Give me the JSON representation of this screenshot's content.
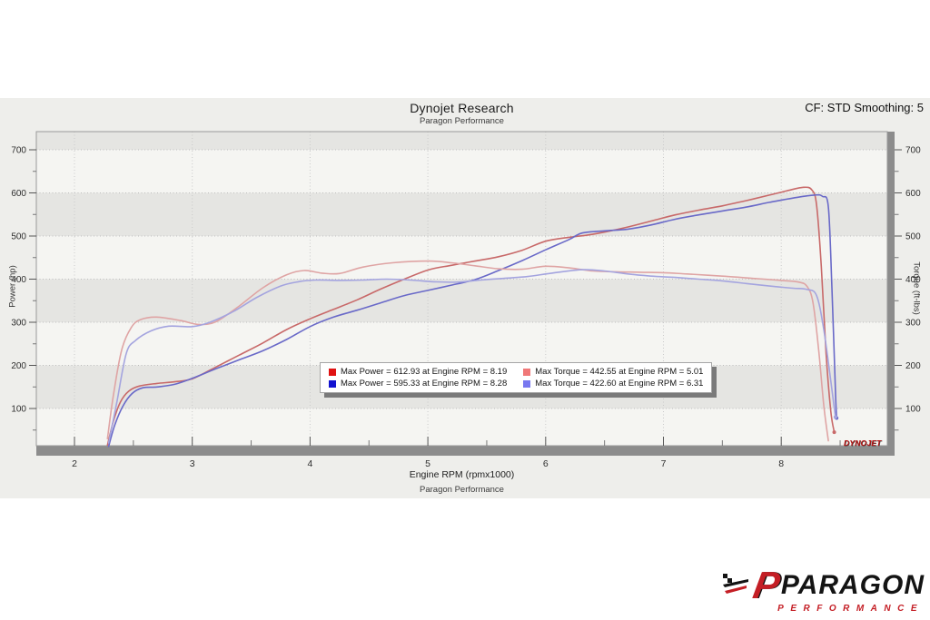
{
  "header": {
    "title": "Dynojet Research",
    "subtitle": "Paragon Performance",
    "cf_label": "CF: STD Smoothing: 5"
  },
  "footer": {
    "xlabel": "Engine RPM (rpmx1000)",
    "sublabel": "Paragon Performance"
  },
  "branding": {
    "dynojet_wordmark": "DYNOJET",
    "paragon_p": "P",
    "paragon_wordmark": "PARAGON",
    "paragon_subtext": "PERFORMANCE",
    "paragon_red": "#c41e25",
    "paragon_black": "#141414"
  },
  "chart_data": {
    "type": "line",
    "title": "Dynojet Research",
    "subtitle": "Paragon Performance",
    "xlabel": "Engine RPM (rpmx1000)",
    "ylabel_left": "Power (hp)",
    "ylabel_right": "Torque (ft-lbs)",
    "x_ticks": [
      2,
      3,
      4,
      5,
      6,
      7,
      8
    ],
    "y_ticks": [
      100,
      200,
      300,
      400,
      500,
      600,
      700
    ],
    "xlim": [
      1.68,
      8.9
    ],
    "ylim": [
      0,
      742
    ],
    "grid": "dotted",
    "legend_position": "center",
    "band_colors": [
      "#f5f5f2",
      "#e5e5e2"
    ],
    "series": [
      {
        "name": "Max Power = 612.93 at Engine RPM = 8.19",
        "kind": "power",
        "unit": "hp",
        "max": 612.93,
        "max_rpm": 8.19,
        "color": "#c86969",
        "legend_swatch": "#e01212",
        "end_dot": true,
        "points": [
          [
            2.28,
            15
          ],
          [
            2.33,
            70
          ],
          [
            2.39,
            115
          ],
          [
            2.46,
            140
          ],
          [
            2.55,
            152
          ],
          [
            2.7,
            158
          ],
          [
            2.85,
            162
          ],
          [
            3.0,
            169
          ],
          [
            3.2,
            196
          ],
          [
            3.4,
            224
          ],
          [
            3.6,
            252
          ],
          [
            3.8,
            283
          ],
          [
            4.0,
            308
          ],
          [
            4.2,
            330
          ],
          [
            4.4,
            352
          ],
          [
            4.6,
            377
          ],
          [
            4.8,
            400
          ],
          [
            5.01,
            422
          ],
          [
            5.2,
            432
          ],
          [
            5.4,
            442
          ],
          [
            5.6,
            452
          ],
          [
            5.8,
            467
          ],
          [
            6.0,
            488
          ],
          [
            6.2,
            497
          ],
          [
            6.35,
            502
          ],
          [
            6.5,
            509
          ],
          [
            6.7,
            521
          ],
          [
            6.9,
            535
          ],
          [
            7.1,
            549
          ],
          [
            7.3,
            560
          ],
          [
            7.5,
            570
          ],
          [
            7.7,
            582
          ],
          [
            7.9,
            595
          ],
          [
            8.05,
            605
          ],
          [
            8.19,
            613
          ],
          [
            8.26,
            607
          ],
          [
            8.3,
            572
          ],
          [
            8.34,
            430
          ],
          [
            8.38,
            230
          ],
          [
            8.42,
            95
          ],
          [
            8.45,
            45
          ]
        ]
      },
      {
        "name": "Max Power = 595.33 at Engine RPM = 8.28",
        "kind": "power",
        "unit": "hp",
        "max": 595.33,
        "max_rpm": 8.28,
        "color": "#6969c8",
        "legend_swatch": "#1212d0",
        "end_dot": true,
        "points": [
          [
            2.29,
            12
          ],
          [
            2.34,
            60
          ],
          [
            2.41,
            105
          ],
          [
            2.49,
            135
          ],
          [
            2.58,
            148
          ],
          [
            2.7,
            150
          ],
          [
            2.85,
            156
          ],
          [
            3.0,
            170
          ],
          [
            3.2,
            192
          ],
          [
            3.4,
            213
          ],
          [
            3.6,
            234
          ],
          [
            3.8,
            260
          ],
          [
            4.0,
            290
          ],
          [
            4.2,
            312
          ],
          [
            4.4,
            328
          ],
          [
            4.6,
            345
          ],
          [
            4.8,
            362
          ],
          [
            5.0,
            374
          ],
          [
            5.2,
            386
          ],
          [
            5.4,
            399
          ],
          [
            5.6,
            420
          ],
          [
            5.8,
            443
          ],
          [
            6.0,
            468
          ],
          [
            6.2,
            492
          ],
          [
            6.31,
            507
          ],
          [
            6.5,
            512
          ],
          [
            6.7,
            516
          ],
          [
            6.9,
            526
          ],
          [
            7.1,
            539
          ],
          [
            7.3,
            549
          ],
          [
            7.5,
            558
          ],
          [
            7.7,
            567
          ],
          [
            7.9,
            578
          ],
          [
            8.1,
            588
          ],
          [
            8.28,
            595
          ],
          [
            8.35,
            592
          ],
          [
            8.4,
            567
          ],
          [
            8.43,
            380
          ],
          [
            8.46,
            140
          ],
          [
            8.47,
            78
          ]
        ]
      },
      {
        "name": "Max Torque = 442.55 at Engine RPM = 5.01",
        "kind": "torque",
        "unit": "ft-lbs",
        "max": 442.55,
        "max_rpm": 5.01,
        "color": "#dfa4a4",
        "legend_swatch": "#f07878",
        "end_dot": false,
        "points": [
          [
            2.28,
            30
          ],
          [
            2.33,
            130
          ],
          [
            2.4,
            235
          ],
          [
            2.48,
            287
          ],
          [
            2.56,
            306
          ],
          [
            2.7,
            312
          ],
          [
            2.9,
            304
          ],
          [
            3.05,
            295
          ],
          [
            3.2,
            301
          ],
          [
            3.4,
            338
          ],
          [
            3.6,
            380
          ],
          [
            3.8,
            410
          ],
          [
            3.95,
            420
          ],
          [
            4.1,
            414
          ],
          [
            4.25,
            413
          ],
          [
            4.45,
            428
          ],
          [
            4.7,
            438
          ],
          [
            5.01,
            442
          ],
          [
            5.2,
            438
          ],
          [
            5.4,
            431
          ],
          [
            5.6,
            424
          ],
          [
            5.8,
            423
          ],
          [
            6.0,
            430
          ],
          [
            6.2,
            426
          ],
          [
            6.4,
            419
          ],
          [
            6.6,
            417
          ],
          [
            6.8,
            416
          ],
          [
            7.0,
            415
          ],
          [
            7.2,
            412
          ],
          [
            7.5,
            407
          ],
          [
            7.8,
            401
          ],
          [
            8.0,
            397
          ],
          [
            8.15,
            393
          ],
          [
            8.22,
            383
          ],
          [
            8.27,
            345
          ],
          [
            8.32,
            230
          ],
          [
            8.36,
            110
          ],
          [
            8.4,
            25
          ]
        ]
      },
      {
        "name": "Max Torque = 422.60 at Engine RPM = 6.31",
        "kind": "torque",
        "unit": "ft-lbs",
        "max": 422.6,
        "max_rpm": 6.31,
        "color": "#a4a4df",
        "legend_swatch": "#7878f0",
        "end_dot": true,
        "points": [
          [
            2.29,
            20
          ],
          [
            2.36,
            115
          ],
          [
            2.44,
            228
          ],
          [
            2.52,
            258
          ],
          [
            2.65,
            280
          ],
          [
            2.8,
            291
          ],
          [
            3.0,
            290
          ],
          [
            3.15,
            300
          ],
          [
            3.35,
            325
          ],
          [
            3.55,
            358
          ],
          [
            3.75,
            384
          ],
          [
            3.9,
            394
          ],
          [
            4.05,
            398
          ],
          [
            4.25,
            397
          ],
          [
            4.45,
            398
          ],
          [
            4.65,
            400
          ],
          [
            4.85,
            398
          ],
          [
            5.05,
            394
          ],
          [
            5.25,
            393
          ],
          [
            5.45,
            398
          ],
          [
            5.65,
            402
          ],
          [
            5.85,
            406
          ],
          [
            6.05,
            414
          ],
          [
            6.31,
            422
          ],
          [
            6.5,
            419
          ],
          [
            6.7,
            412
          ],
          [
            6.9,
            407
          ],
          [
            7.1,
            404
          ],
          [
            7.3,
            400
          ],
          [
            7.5,
            396
          ],
          [
            7.7,
            390
          ],
          [
            7.9,
            384
          ],
          [
            8.1,
            379
          ],
          [
            8.22,
            376
          ],
          [
            8.3,
            362
          ],
          [
            8.36,
            285
          ],
          [
            8.42,
            165
          ],
          [
            8.46,
            80
          ]
        ]
      }
    ]
  }
}
